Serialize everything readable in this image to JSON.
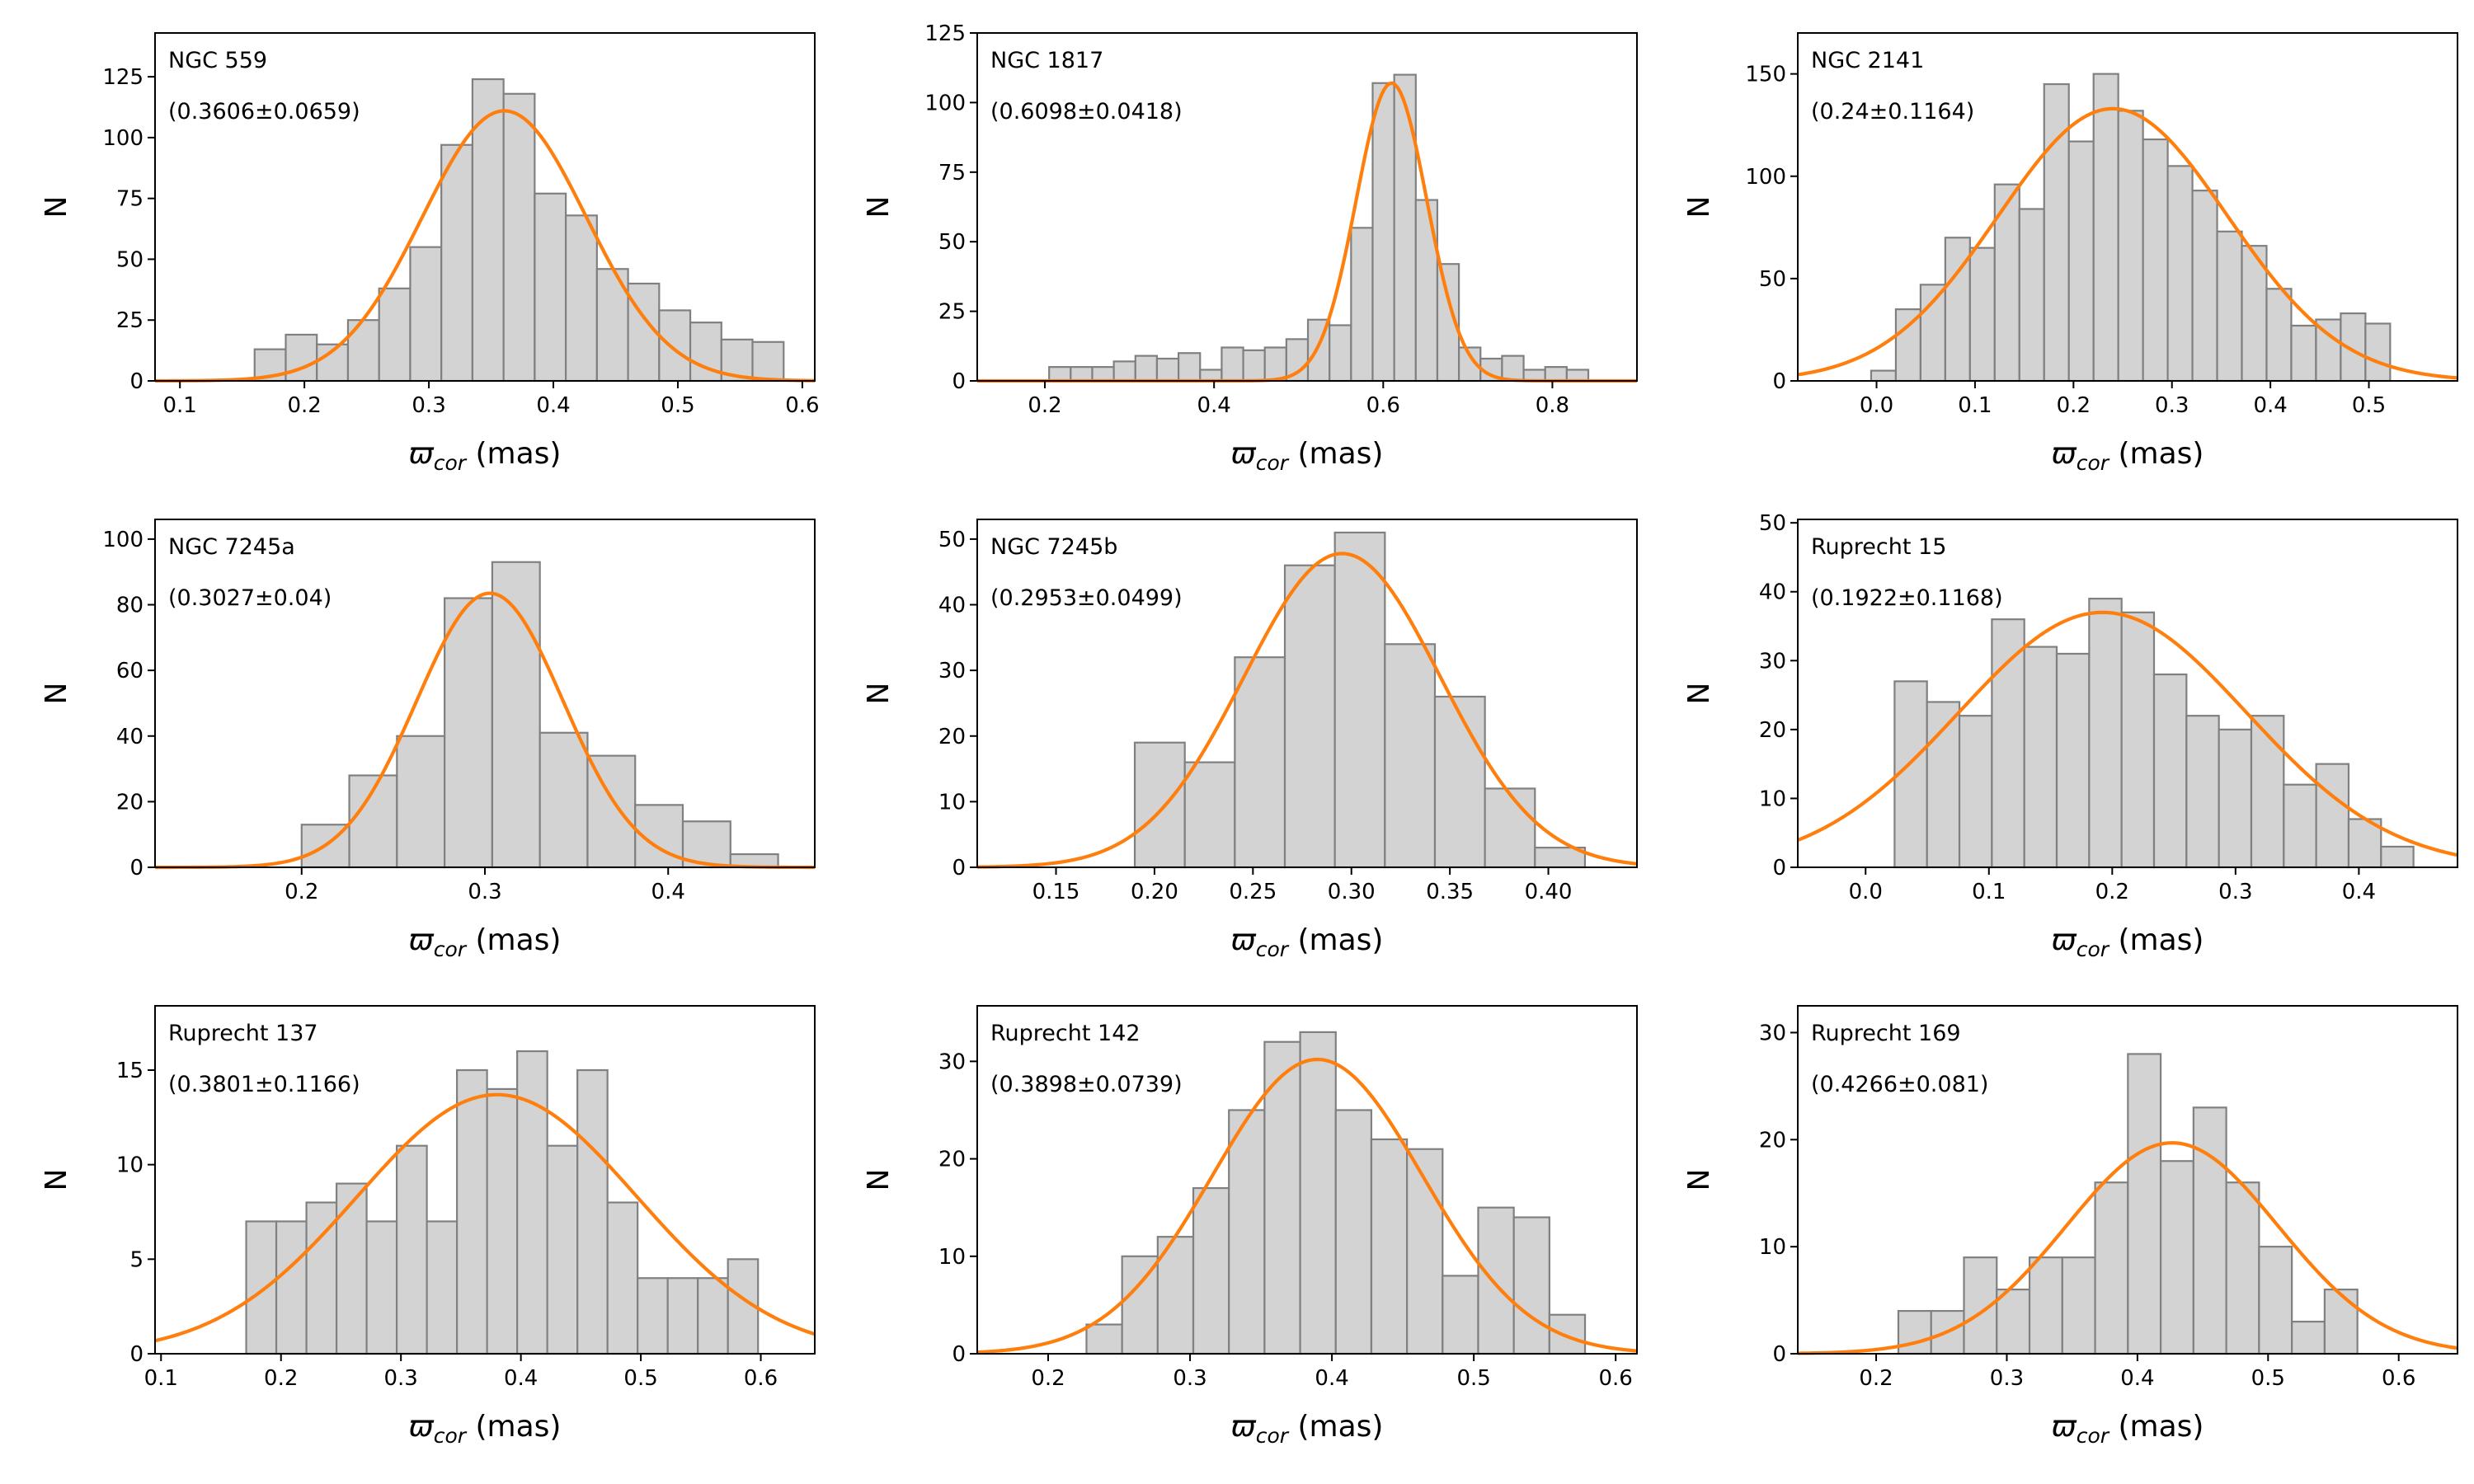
{
  "figure": {
    "xlabel_symbol": "ϖ",
    "xlabel_sub": "cor",
    "xlabel_unit": "(mas)",
    "ylabel": "N",
    "colors": {
      "bar_fill": "#d3d3d3",
      "bar_edge": "#808080",
      "fit": "#ff7f0e"
    }
  },
  "chart_data": [
    {
      "type": "bar",
      "name": "NGC 559",
      "stat": "(0.3606±0.0659)",
      "mean": 0.3606,
      "sigma": 0.0659,
      "peak": 111,
      "xlim": [
        0.08,
        0.61
      ],
      "ylim": [
        0,
        143
      ],
      "xticks": [
        0.1,
        0.2,
        0.3,
        0.4,
        0.5,
        0.6
      ],
      "xtick_labels": [
        "0.1",
        "0.2",
        "0.3",
        "0.4",
        "0.5",
        "0.6"
      ],
      "yticks": [
        0,
        25,
        50,
        75,
        100,
        125
      ],
      "ytick_labels": [
        "0",
        "25",
        "50",
        "75",
        "100",
        "125"
      ],
      "bin_start": 0.16,
      "bin_width": 0.025,
      "values": [
        13,
        19,
        15,
        25,
        38,
        55,
        97,
        124,
        118,
        77,
        68,
        46,
        40,
        29,
        24,
        17,
        16
      ]
    },
    {
      "type": "bar",
      "name": "NGC 1817",
      "stat": "(0.6098±0.0418)",
      "mean": 0.6098,
      "sigma": 0.0418,
      "peak": 107,
      "xlim": [
        0.12,
        0.9
      ],
      "ylim": [
        0,
        125
      ],
      "xticks": [
        0.2,
        0.4,
        0.6,
        0.8
      ],
      "xtick_labels": [
        "0.2",
        "0.4",
        "0.6",
        "0.8"
      ],
      "yticks": [
        0,
        25,
        50,
        75,
        100,
        125
      ],
      "ytick_labels": [
        "0",
        "25",
        "50",
        "75",
        "100",
        "125"
      ],
      "bin_start": 0.205,
      "bin_width": 0.0255,
      "values": [
        5,
        5,
        5,
        7,
        9,
        8,
        10,
        4,
        12,
        11,
        12,
        15,
        22,
        20,
        55,
        107,
        110,
        65,
        42,
        12,
        8,
        9,
        4,
        5,
        4
      ]
    },
    {
      "type": "bar",
      "name": "NGC 2141",
      "stat": "(0.24±0.1164)",
      "mean": 0.24,
      "sigma": 0.1164,
      "peak": 133,
      "xlim": [
        -0.08,
        0.59
      ],
      "ylim": [
        0,
        170
      ],
      "xticks": [
        0.0,
        0.1,
        0.2,
        0.3,
        0.4,
        0.5
      ],
      "xtick_labels": [
        "0.0",
        "0.1",
        "0.2",
        "0.3",
        "0.4",
        "0.5"
      ],
      "yticks": [
        0,
        50,
        100,
        150
      ],
      "ytick_labels": [
        "0",
        "50",
        "100",
        "150"
      ],
      "bin_start": -0.0055,
      "bin_width": 0.0251,
      "values": [
        5,
        35,
        47,
        70,
        65,
        96,
        84,
        145,
        117,
        150,
        132,
        118,
        105,
        93,
        73,
        66,
        45,
        27,
        30,
        33,
        28
      ]
    },
    {
      "type": "bar",
      "name": "NGC 7245a",
      "stat": "(0.3027±0.04)",
      "mean": 0.3027,
      "sigma": 0.04,
      "peak": 83.5,
      "xlim": [
        0.12,
        0.48
      ],
      "ylim": [
        0,
        106
      ],
      "xticks": [
        0.2,
        0.3,
        0.4
      ],
      "xtick_labels": [
        "0.2",
        "0.3",
        "0.4"
      ],
      "yticks": [
        0,
        20,
        40,
        60,
        80,
        100
      ],
      "ytick_labels": [
        "0",
        "20",
        "40",
        "60",
        "80",
        "100"
      ],
      "bin_start": 0.2,
      "bin_width": 0.026,
      "values": [
        13,
        28,
        40,
        82,
        93,
        41,
        34,
        19,
        14,
        4
      ]
    },
    {
      "type": "bar",
      "name": "NGC 7245b",
      "stat": "(0.2953±0.0499)",
      "mean": 0.2953,
      "sigma": 0.0499,
      "peak": 47.8,
      "xlim": [
        0.11,
        0.445
      ],
      "ylim": [
        0,
        53
      ],
      "xticks": [
        0.15,
        0.2,
        0.25,
        0.3,
        0.35,
        0.4
      ],
      "xtick_labels": [
        "0.15",
        "0.20",
        "0.25",
        "0.30",
        "0.35",
        "0.40"
      ],
      "yticks": [
        0,
        10,
        20,
        30,
        40,
        50
      ],
      "ytick_labels": [
        "0",
        "10",
        "20",
        "30",
        "40",
        "50"
      ],
      "bin_start": 0.19,
      "bin_width": 0.0254,
      "values": [
        19,
        16,
        32,
        46,
        51,
        34,
        26,
        12,
        3
      ]
    },
    {
      "type": "bar",
      "name": "Ruprecht 15",
      "stat": "(0.1922±0.1168)",
      "mean": 0.1922,
      "sigma": 0.1168,
      "peak": 37,
      "xlim": [
        -0.055,
        0.48
      ],
      "ylim": [
        0,
        50.5
      ],
      "xticks": [
        0.0,
        0.1,
        0.2,
        0.3,
        0.4
      ],
      "xtick_labels": [
        "0.0",
        "0.1",
        "0.2",
        "0.3",
        "0.4"
      ],
      "yticks": [
        0,
        10,
        20,
        30,
        40,
        50
      ],
      "ytick_labels": [
        "0",
        "10",
        "20",
        "30",
        "40",
        "50"
      ],
      "bin_start": 0.0235,
      "bin_width": 0.0263,
      "values": [
        27,
        24,
        22,
        36,
        32,
        31,
        39,
        37,
        28,
        22,
        20,
        22,
        12,
        15,
        7,
        3
      ]
    },
    {
      "type": "bar",
      "name": "Ruprecht 137",
      "stat": "(0.3801±0.1166)",
      "mean": 0.3801,
      "sigma": 0.1166,
      "peak": 13.7,
      "xlim": [
        0.095,
        0.645
      ],
      "ylim": [
        0,
        18.4
      ],
      "xticks": [
        0.1,
        0.2,
        0.3,
        0.4,
        0.5,
        0.6
      ],
      "xtick_labels": [
        "0.1",
        "0.2",
        "0.3",
        "0.4",
        "0.5",
        "0.6"
      ],
      "yticks": [
        0,
        5,
        10,
        15
      ],
      "ytick_labels": [
        "0",
        "5",
        "10",
        "15"
      ],
      "bin_start": 0.171,
      "bin_width": 0.0251,
      "values": [
        7,
        7,
        8,
        9,
        7,
        11,
        7,
        15,
        14,
        16,
        11,
        15,
        8,
        4,
        4,
        4,
        5
      ]
    },
    {
      "type": "bar",
      "name": "Ruprecht 142",
      "stat": "(0.3898±0.0739)",
      "mean": 0.3898,
      "sigma": 0.0739,
      "peak": 30.2,
      "xlim": [
        0.15,
        0.615
      ],
      "ylim": [
        0,
        35.7
      ],
      "xticks": [
        0.2,
        0.3,
        0.4,
        0.5,
        0.6
      ],
      "xtick_labels": [
        "0.2",
        "0.3",
        "0.4",
        "0.5",
        "0.6"
      ],
      "yticks": [
        0,
        10,
        20,
        30
      ],
      "ytick_labels": [
        "0",
        "10",
        "20",
        "30"
      ],
      "bin_start": 0.227,
      "bin_width": 0.0251,
      "values": [
        3,
        10,
        12,
        17,
        25,
        32,
        33,
        25,
        22,
        21,
        8,
        15,
        14,
        4
      ]
    },
    {
      "type": "bar",
      "name": "Ruprecht 169",
      "stat": "(0.4266±0.081)",
      "mean": 0.4266,
      "sigma": 0.081,
      "peak": 19.7,
      "xlim": [
        0.14,
        0.645
      ],
      "ylim": [
        0,
        32.5
      ],
      "xticks": [
        0.2,
        0.3,
        0.4,
        0.5,
        0.6
      ],
      "xtick_labels": [
        "0.2",
        "0.3",
        "0.4",
        "0.5",
        "0.6"
      ],
      "yticks": [
        0,
        10,
        20,
        30
      ],
      "ytick_labels": [
        "0",
        "10",
        "20",
        "30"
      ],
      "bin_start": 0.217,
      "bin_width": 0.0251,
      "values": [
        4,
        4,
        9,
        6,
        9,
        9,
        16,
        28,
        18,
        23,
        16,
        10,
        3,
        6
      ]
    }
  ]
}
